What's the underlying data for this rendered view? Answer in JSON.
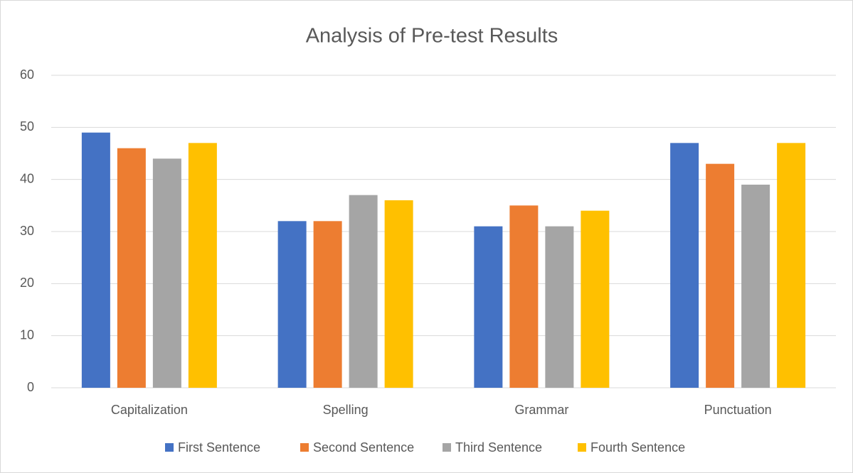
{
  "chart_data": {
    "type": "bar",
    "title": "Analysis of Pre-test Results",
    "categories": [
      "Capitalization",
      "Spelling",
      "Grammar",
      "Punctuation"
    ],
    "series": [
      {
        "name": "First Sentence",
        "color": "#4472c4",
        "values": [
          49,
          32,
          31,
          47
        ]
      },
      {
        "name": "Second Sentence",
        "color": "#ed7d31",
        "values": [
          46,
          32,
          35,
          43
        ]
      },
      {
        "name": "Third Sentence",
        "color": "#a5a5a5",
        "values": [
          44,
          37,
          31,
          39
        ]
      },
      {
        "name": "Fourth Sentence",
        "color": "#ffc000",
        "values": [
          47,
          36,
          34,
          47
        ]
      }
    ],
    "ylim": [
      0,
      60
    ],
    "yticks": [
      0,
      10,
      20,
      30,
      40,
      50,
      60
    ],
    "grid": true,
    "legend": "bottom"
  }
}
